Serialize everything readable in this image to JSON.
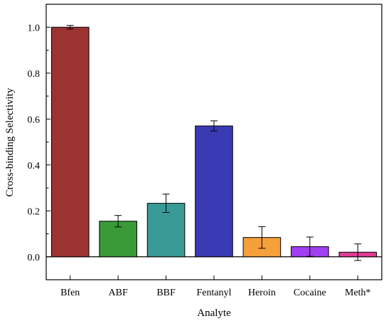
{
  "chart_data": {
    "type": "bar",
    "title": "",
    "xlabel": "Analyte",
    "ylabel": "Cross-binding Selectivity",
    "categories": [
      "Bfen",
      "ABF",
      "BBF",
      "Fentanyl",
      "Heroin",
      "Cocaine",
      "Meth*"
    ],
    "values": [
      1.0,
      0.155,
      0.233,
      0.57,
      0.084,
      0.044,
      0.02
    ],
    "errors": [
      0.008,
      0.025,
      0.04,
      0.022,
      0.047,
      0.042,
      0.036
    ],
    "colors": [
      "#9b3333",
      "#3a9a38",
      "#3a9a95",
      "#3a3ab4",
      "#f5a03a",
      "#a040f0",
      "#e03c94"
    ],
    "ylim": [
      -0.1,
      1.1
    ],
    "yticks": [
      0.0,
      0.2,
      0.4,
      0.6,
      0.8,
      1.0
    ],
    "ytick_labels": [
      "0.0",
      "0.2",
      "0.4",
      "0.6",
      "0.8",
      "1.0"
    ],
    "grid": false,
    "legend": "none"
  }
}
